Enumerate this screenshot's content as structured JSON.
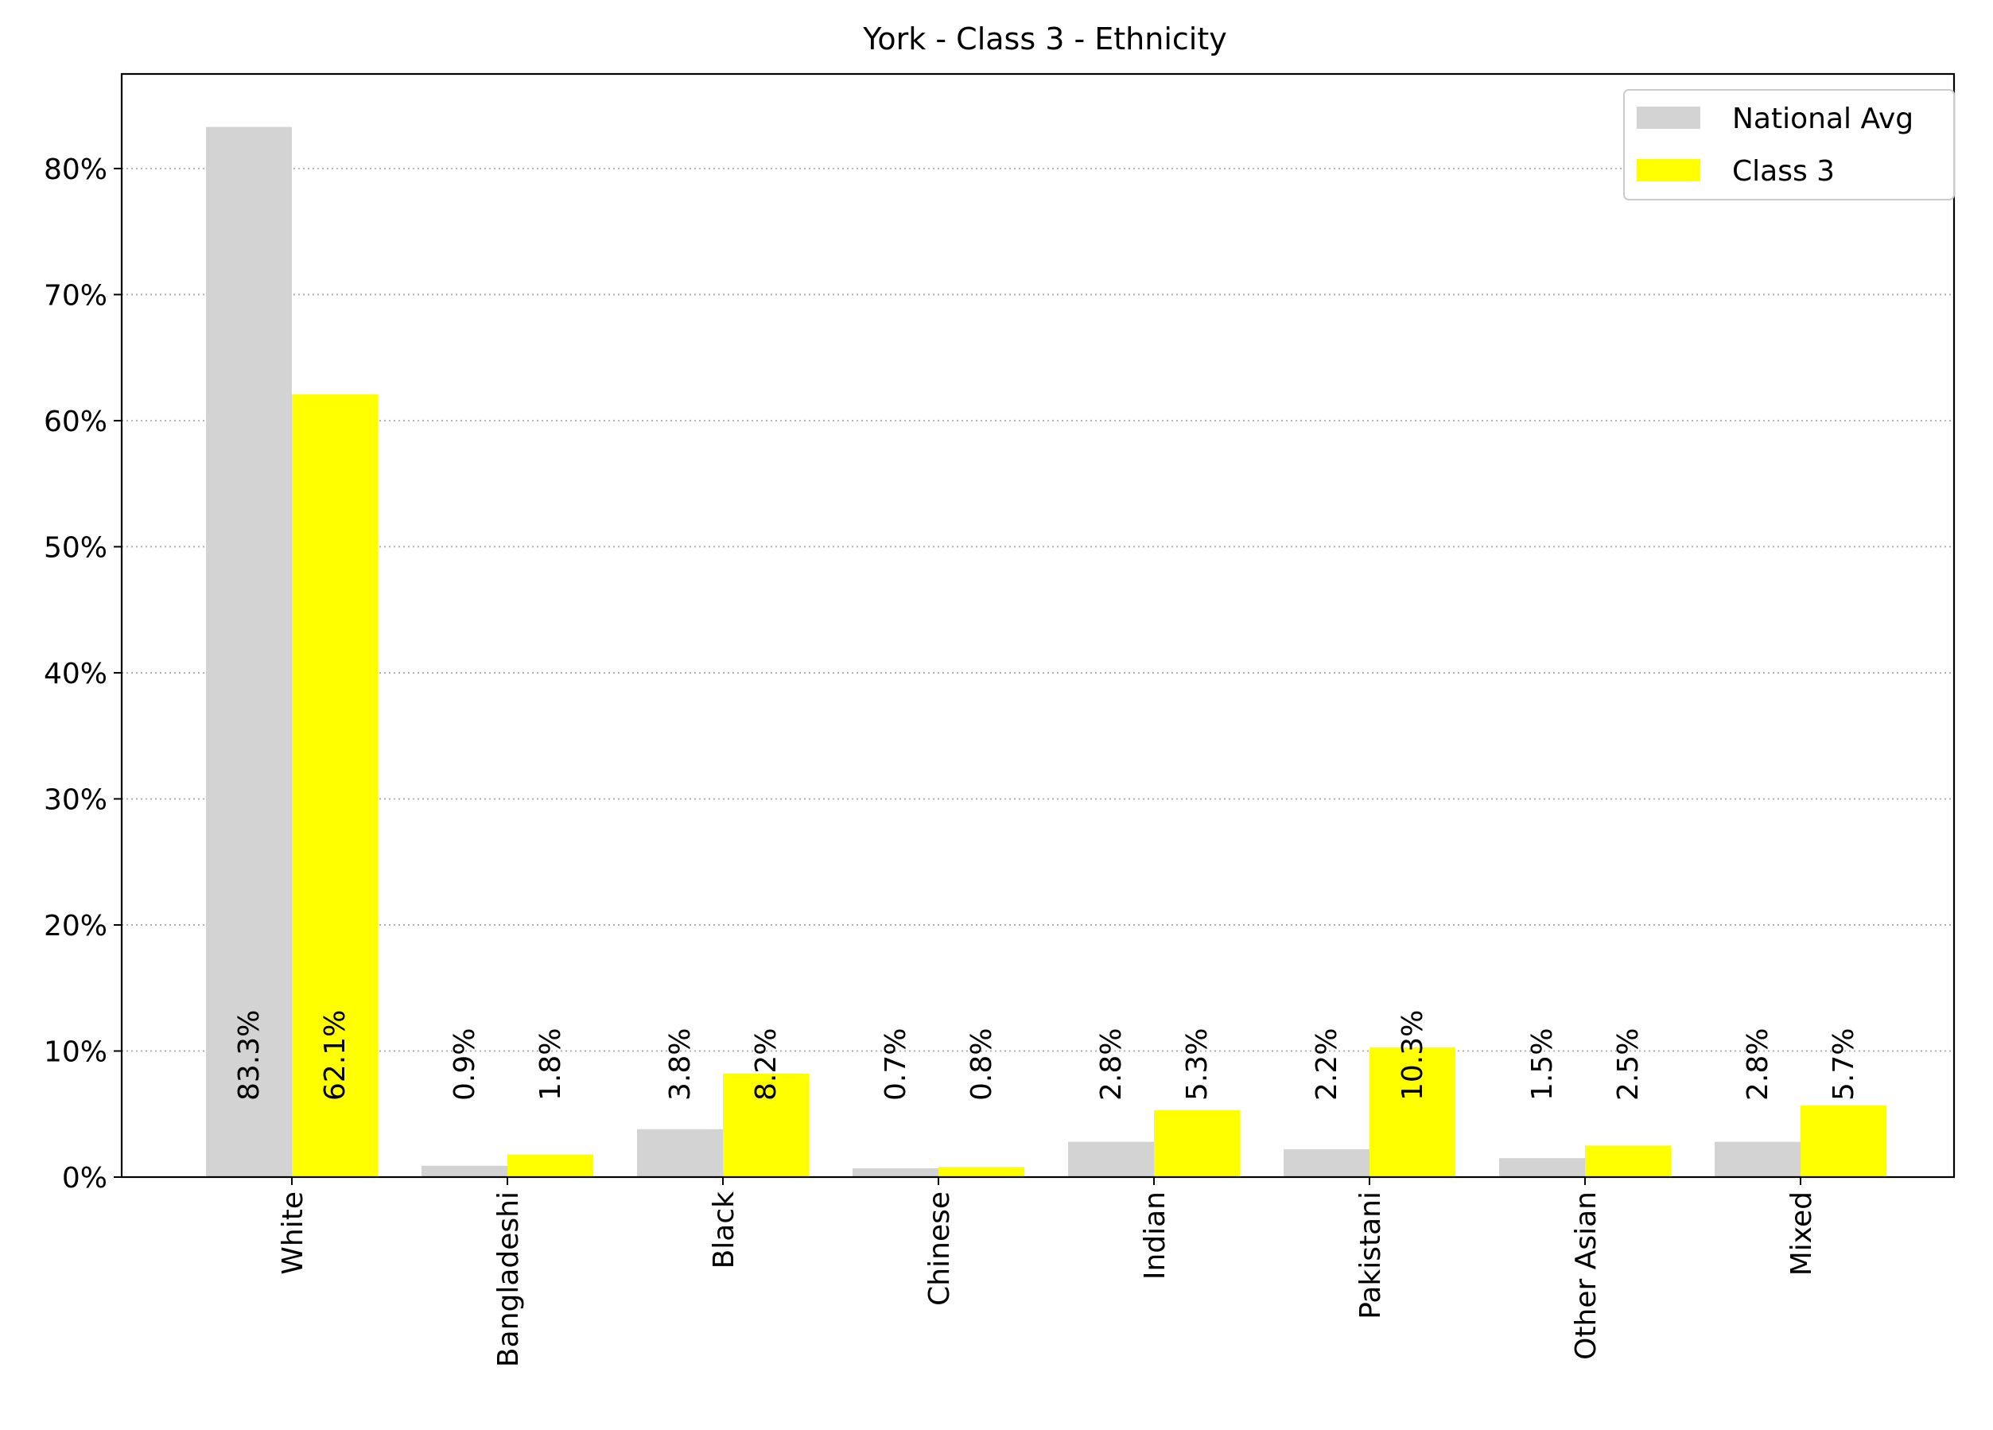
{
  "chart_data": {
    "type": "bar",
    "title": "York - Class 3 - Ethnicity",
    "xlabel": "",
    "ylabel": "",
    "categories": [
      "White",
      "Bangladeshi",
      "Black",
      "Chinese",
      "Indian",
      "Pakistani",
      "Other Asian",
      "Mixed"
    ],
    "series": [
      {
        "name": "National Avg",
        "color": "#d3d3d3",
        "values": [
          83.3,
          0.9,
          3.8,
          0.7,
          2.8,
          2.2,
          1.5,
          2.8
        ],
        "labels": [
          "83.3%",
          "0.9%",
          "3.8%",
          "0.7%",
          "2.8%",
          "2.2%",
          "1.5%",
          "2.8%"
        ]
      },
      {
        "name": "Class 3",
        "color": "#ffff00",
        "values": [
          62.1,
          1.8,
          8.2,
          0.8,
          5.3,
          10.3,
          2.5,
          5.7
        ],
        "labels": [
          "62.1%",
          "1.8%",
          "8.2%",
          "0.8%",
          "5.3%",
          "10.3%",
          "2.5%",
          "5.7%"
        ]
      }
    ],
    "ylim": [
      0,
      87.5
    ],
    "yticks": [
      0,
      10,
      20,
      30,
      40,
      50,
      60,
      70,
      80
    ],
    "ytick_labels": [
      "0%",
      "10%",
      "20%",
      "30%",
      "40%",
      "50%",
      "60%",
      "70%",
      "80%"
    ],
    "grid": "y, dotted",
    "legend": "top-right"
  }
}
